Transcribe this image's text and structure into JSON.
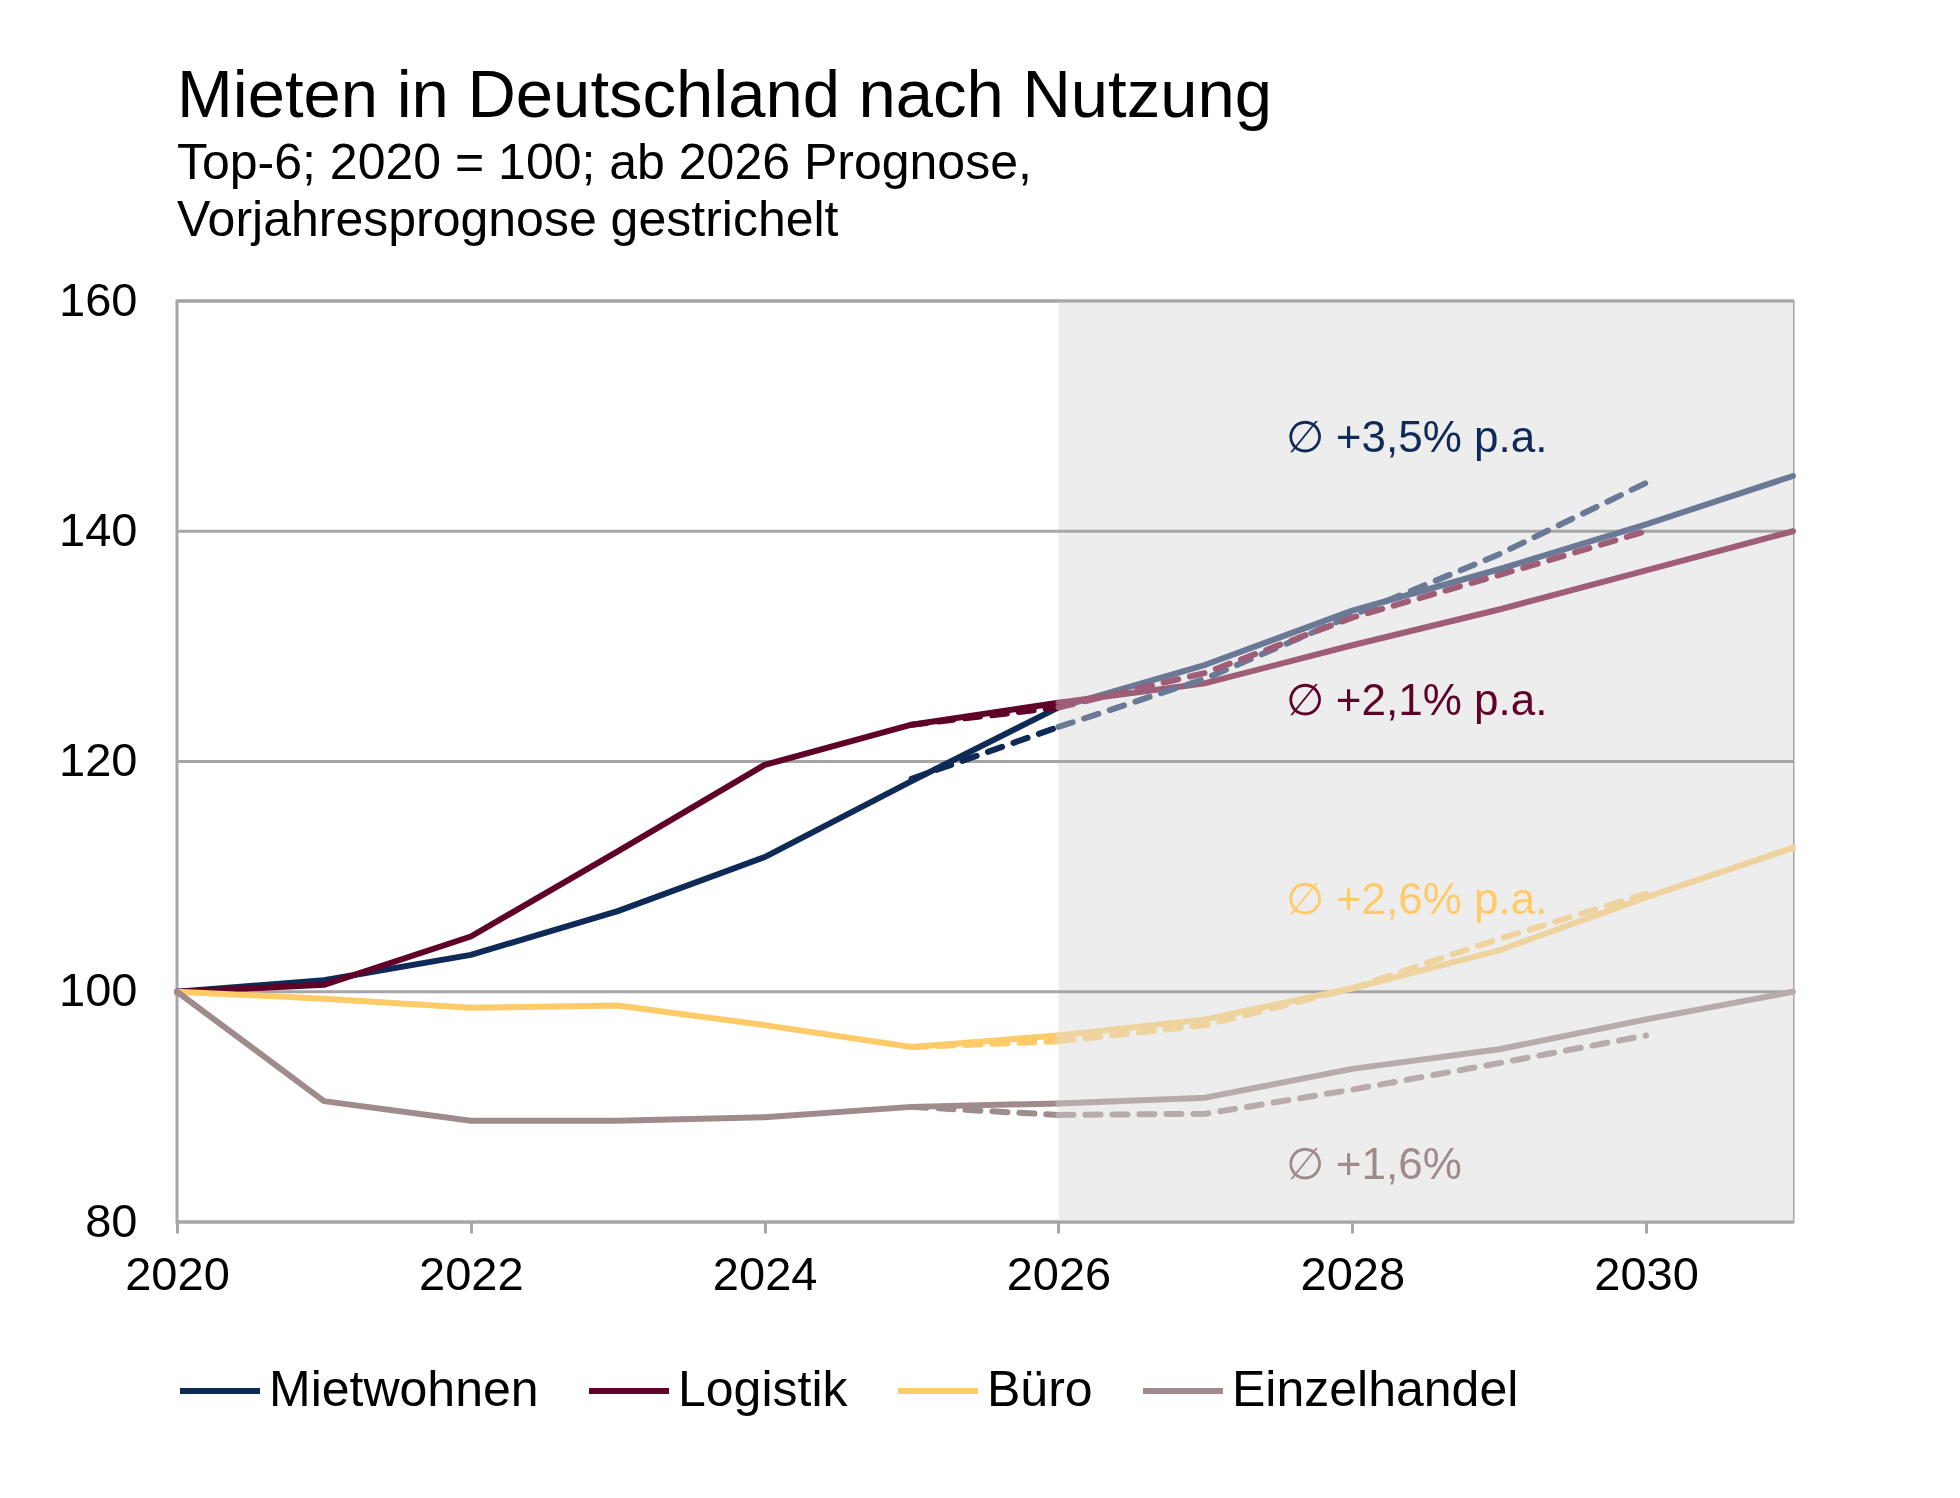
{
  "chart_data": {
    "type": "line",
    "title": "Mieten in Deutschland nach Nutzung",
    "subtitle": "Top-6; 2020 = 100; ab 2026 Prognose,\nVorjahresprognose gestrichelt",
    "xlim": [
      2020,
      2031
    ],
    "xticks": [
      2020,
      2022,
      2024,
      2026,
      2028,
      2030
    ],
    "ylim": [
      80,
      160
    ],
    "yticks": [
      80,
      100,
      120,
      140,
      160
    ],
    "grid": "y",
    "legend": "bottom",
    "bands": [
      {
        "axis": "x",
        "from": 2026,
        "to": 2031,
        "color": "#ededed"
      }
    ],
    "series": [
      {
        "name": "Mietwohnen",
        "color": "#0f2a56",
        "x": [
          2020,
          2021,
          2022,
          2023,
          2024,
          2025,
          2026
        ],
        "values": [
          100,
          101.0,
          103.2,
          107.0,
          111.7,
          118.3,
          124.7
        ]
      },
      {
        "name": "Logistik",
        "color": "#5f0128",
        "x": [
          2020,
          2021,
          2022,
          2023,
          2024,
          2025,
          2026
        ],
        "values": [
          100,
          100.6,
          104.8,
          112.2,
          119.7,
          123.2,
          125.1
        ]
      },
      {
        "name": "Büro",
        "color": "#ffca68",
        "x": [
          2020,
          2021,
          2022,
          2023,
          2024,
          2025,
          2026
        ],
        "values": [
          100,
          99.4,
          98.6,
          98.8,
          97.1,
          95.2,
          96.2
        ]
      },
      {
        "name": "Einzelhandel",
        "color": "#9f8b8b",
        "x": [
          2020,
          2021,
          2022,
          2023,
          2024,
          2025,
          2026
        ],
        "values": [
          100,
          90.5,
          88.8,
          88.8,
          89.1,
          90.0,
          90.3
        ]
      },
      {
        "color": "#6a7a96",
        "x": [
          2026,
          2027,
          2028,
          2029,
          2030,
          2031
        ],
        "values": [
          124.7,
          128.4,
          133.1,
          136.7,
          140.6,
          144.8
        ]
      },
      {
        "color": "#9f5d78",
        "x": [
          2026,
          2027,
          2028,
          2029,
          2030,
          2031
        ],
        "values": [
          125.1,
          126.8,
          130.1,
          133.2,
          136.6,
          140.0
        ]
      },
      {
        "color": "#efd39f",
        "x": [
          2026,
          2027,
          2028,
          2029,
          2030,
          2031
        ],
        "values": [
          96.2,
          97.6,
          100.3,
          103.6,
          108.2,
          112.5
        ]
      },
      {
        "color": "#b8abab",
        "x": [
          2026,
          2027,
          2028,
          2029,
          2030,
          2031
        ],
        "values": [
          90.3,
          90.8,
          93.3,
          95.0,
          97.6,
          100.0
        ]
      },
      {
        "color": "#0f2a56",
        "line_style": "dashed",
        "x": [
          2025,
          2026
        ],
        "values": [
          118.5,
          123.0
        ]
      },
      {
        "color": "#5f0128",
        "line_style": "dashed",
        "x": [
          2025,
          2026
        ],
        "values": [
          123.2,
          124.7
        ]
      },
      {
        "color": "#ffca68",
        "line_style": "dashed",
        "x": [
          2025,
          2026
        ],
        "values": [
          95.2,
          95.7
        ]
      },
      {
        "color": "#9f8b8b",
        "line_style": "dashed",
        "x": [
          2025,
          2026
        ],
        "values": [
          90.0,
          89.3
        ]
      },
      {
        "color": "#6a7a96",
        "line_style": "dashed",
        "x": [
          2026,
          2027,
          2028,
          2029,
          2030
        ],
        "values": [
          123.0,
          127.2,
          132.7,
          138.0,
          144.2
        ]
      },
      {
        "color": "#9f5d78",
        "line_style": "dashed",
        "x": [
          2026,
          2027,
          2028,
          2029,
          2030
        ],
        "values": [
          124.7,
          127.7,
          132.5,
          136.2,
          140.0
        ]
      },
      {
        "color": "#efd39f",
        "line_style": "dashed",
        "x": [
          2026,
          2027,
          2028,
          2029,
          2030
        ],
        "values": [
          95.7,
          97.1,
          100.3,
          104.6,
          108.5
        ]
      },
      {
        "color": "#b8abab",
        "line_style": "dashed",
        "x": [
          2026,
          2027,
          2028,
          2029,
          2030
        ],
        "values": [
          89.3,
          89.4,
          91.5,
          93.8,
          96.2
        ]
      }
    ],
    "annotations": [
      "∅ +3,5% p.a.",
      "∅ +2,1% p.a.",
      "∅ +2,6% p.a.",
      "∅ +1,6%"
    ]
  }
}
